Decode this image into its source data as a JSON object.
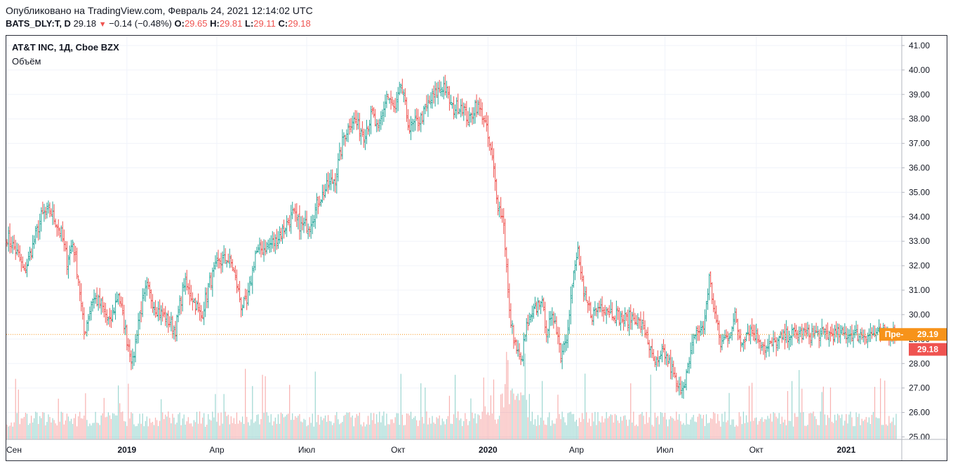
{
  "header": {
    "published": "Опубликовано на TradingView.com, Февраль 24, 2021 12:14:02 UTC",
    "symbol": "BATS_DLY:T, D",
    "last": "29.18",
    "change": "−0.14 (−0.48%)",
    "open_label": "O:",
    "open": "29.65",
    "high_label": "H:",
    "high": "29.81",
    "low_label": "L:",
    "low": "29.11",
    "close_label": "C:",
    "close": "29.18"
  },
  "legend": {
    "title": "AT&T INC, 1Д, Cboe BZX",
    "volume": "Объём"
  },
  "colors": {
    "up": "#26a69a",
    "down": "#ef5350",
    "pre_badge": "#f7931a",
    "last_badge": "#ef5350",
    "grid": "#f0f3fa"
  },
  "chart_data": {
    "type": "ohlc",
    "title": "AT&T INC, 1Д, Cboe BZX",
    "y_ticks": [
      "41.00",
      "40.00",
      "39.00",
      "38.00",
      "37.00",
      "36.00",
      "35.00",
      "34.00",
      "33.00",
      "32.00",
      "31.00",
      "30.00",
      "29.00",
      "28.00",
      "27.00",
      "26.00",
      "25.00"
    ],
    "ylim": [
      24.9,
      41.4
    ],
    "x_ticks": [
      {
        "label": "Сен",
        "bold": false,
        "idx": 0
      },
      {
        "label": "2019",
        "bold": true,
        "idx": 84
      },
      {
        "label": "Апр",
        "bold": false,
        "idx": 147
      },
      {
        "label": "Июл",
        "bold": false,
        "idx": 210
      },
      {
        "label": "Окт",
        "bold": false,
        "idx": 274
      },
      {
        "label": "2020",
        "bold": true,
        "idx": 337
      },
      {
        "label": "Апр",
        "bold": false,
        "idx": 399
      },
      {
        "label": "Июл",
        "bold": false,
        "idx": 461
      },
      {
        "label": "Окт",
        "bold": false,
        "idx": 525
      },
      {
        "label": "2021",
        "bold": true,
        "idx": 588
      }
    ],
    "bars_count": 624,
    "anchors": [
      [
        0,
        33.2
      ],
      [
        8,
        32.4
      ],
      [
        12,
        31.7
      ],
      [
        18,
        32.8
      ],
      [
        24,
        34.0
      ],
      [
        30,
        34.3
      ],
      [
        34,
        33.8
      ],
      [
        38,
        33.3
      ],
      [
        42,
        32.2
      ],
      [
        46,
        33.0
      ],
      [
        50,
        31.5
      ],
      [
        54,
        29.2
      ],
      [
        60,
        30.7
      ],
      [
        66,
        30.4
      ],
      [
        72,
        29.6
      ],
      [
        78,
        30.9
      ],
      [
        84,
        29.0
      ],
      [
        88,
        28.0
      ],
      [
        92,
        29.8
      ],
      [
        98,
        31.1
      ],
      [
        104,
        30.3
      ],
      [
        112,
        29.8
      ],
      [
        118,
        29.4
      ],
      [
        124,
        31.3
      ],
      [
        130,
        30.7
      ],
      [
        136,
        29.9
      ],
      [
        142,
        31.3
      ],
      [
        148,
        32.1
      ],
      [
        154,
        32.3
      ],
      [
        158,
        32.0
      ],
      [
        164,
        30.4
      ],
      [
        168,
        30.4
      ],
      [
        174,
        32.5
      ],
      [
        182,
        32.8
      ],
      [
        188,
        33.0
      ],
      [
        194,
        33.5
      ],
      [
        200,
        34.1
      ],
      [
        206,
        33.6
      ],
      [
        212,
        33.7
      ],
      [
        218,
        34.6
      ],
      [
        224,
        35.2
      ],
      [
        230,
        35.6
      ],
      [
        236,
        37.3
      ],
      [
        242,
        38.0
      ],
      [
        250,
        37.4
      ],
      [
        256,
        38.2
      ],
      [
        260,
        37.4
      ],
      [
        266,
        39.0
      ],
      [
        272,
        38.3
      ],
      [
        276,
        39.4
      ],
      [
        282,
        37.6
      ],
      [
        290,
        38.0
      ],
      [
        298,
        38.9
      ],
      [
        306,
        39.4
      ],
      [
        312,
        38.4
      ],
      [
        318,
        38.6
      ],
      [
        324,
        37.9
      ],
      [
        328,
        38.6
      ],
      [
        334,
        38.1
      ],
      [
        340,
        36.3
      ],
      [
        344,
        34.5
      ],
      [
        348,
        33.8
      ],
      [
        352,
        30.0
      ],
      [
        356,
        28.8
      ],
      [
        360,
        28.0
      ],
      [
        364,
        29.5
      ],
      [
        368,
        29.9
      ],
      [
        374,
        30.7
      ],
      [
        378,
        29.4
      ],
      [
        384,
        29.9
      ],
      [
        388,
        28.4
      ],
      [
        392,
        29.2
      ],
      [
        396,
        31.2
      ],
      [
        400,
        32.6
      ],
      [
        404,
        30.7
      ],
      [
        410,
        30.0
      ],
      [
        416,
        30.4
      ],
      [
        424,
        30.1
      ],
      [
        432,
        29.8
      ],
      [
        440,
        29.9
      ],
      [
        448,
        29.2
      ],
      [
        452,
        28.2
      ],
      [
        456,
        27.9
      ],
      [
        460,
        28.5
      ],
      [
        466,
        27.7
      ],
      [
        470,
        26.9
      ],
      [
        474,
        27.2
      ],
      [
        478,
        28.0
      ],
      [
        482,
        29.3
      ],
      [
        488,
        29.4
      ],
      [
        492,
        31.5
      ],
      [
        496,
        30.0
      ],
      [
        500,
        28.8
      ],
      [
        506,
        29.2
      ],
      [
        510,
        29.9
      ],
      [
        514,
        28.9
      ],
      [
        520,
        29.4
      ],
      [
        526,
        29.1
      ],
      [
        532,
        28.6
      ],
      [
        540,
        28.9
      ],
      [
        548,
        29.2
      ]
    ]
  },
  "price_badges": {
    "pre_label": "Пре-",
    "pre_value": "29.19",
    "last_value": "29.18"
  }
}
